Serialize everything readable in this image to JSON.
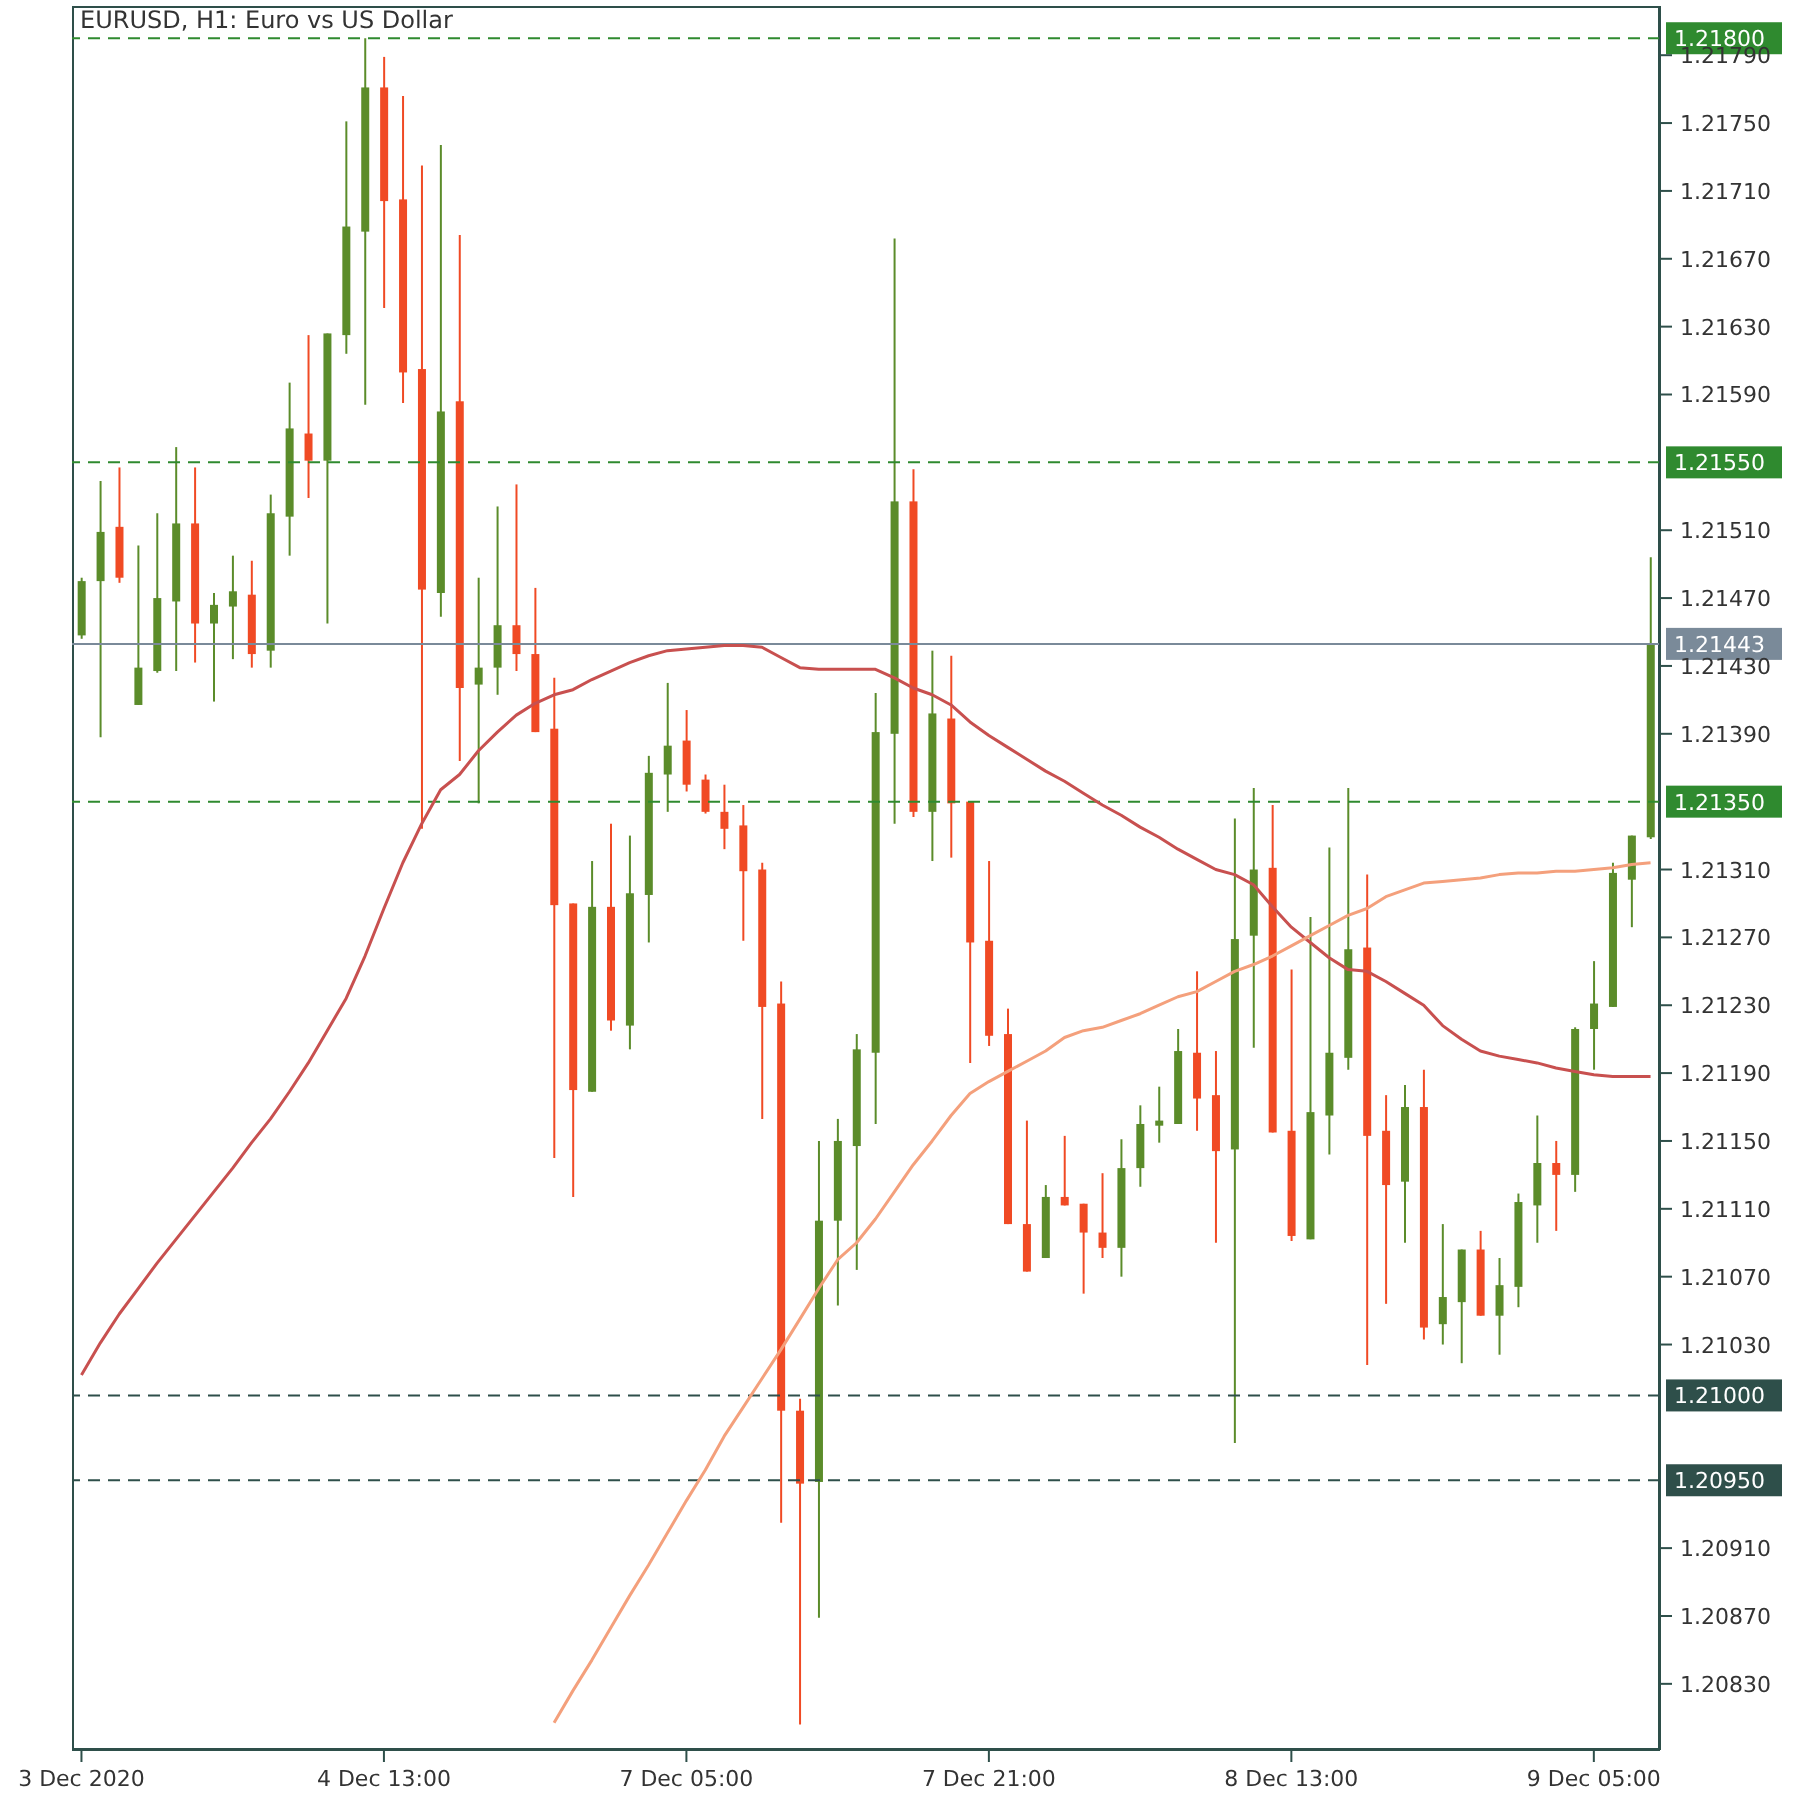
{
  "chart_data": {
    "type": "candlestick",
    "title": "EURUSD, H1:  Euro vs US Dollar",
    "categories": [
      "3 Dec 2020",
      null,
      null,
      null,
      null,
      null,
      null,
      null,
      null,
      null,
      null,
      null,
      null,
      null,
      null,
      null,
      "4 Dec 13:00",
      null,
      null,
      null,
      null,
      null,
      null,
      null,
      null,
      null,
      null,
      null,
      null,
      null,
      null,
      null,
      "7 Dec 05:00",
      null,
      null,
      null,
      null,
      null,
      null,
      null,
      null,
      null,
      null,
      null,
      null,
      null,
      null,
      null,
      "7 Dec 21:00",
      null,
      null,
      null,
      null,
      null,
      null,
      null,
      null,
      null,
      null,
      null,
      null,
      null,
      null,
      null,
      "8 Dec 13:00",
      null,
      null,
      null,
      null,
      null,
      null,
      null,
      null,
      null,
      null,
      null,
      null,
      null,
      null,
      null,
      "9 Dec 05:00",
      null,
      null,
      null
    ],
    "ohlc": [
      [
        1.21448,
        1.21482,
        1.21446,
        1.2148
      ],
      [
        1.2148,
        1.21539,
        1.21388,
        1.21509
      ],
      [
        1.21512,
        1.21547,
        1.21479,
        1.21482
      ],
      [
        1.21407,
        1.21501,
        1.21407,
        1.21429
      ],
      [
        1.21427,
        1.2152,
        1.21426,
        1.2147
      ],
      [
        1.21468,
        1.21559,
        1.21427,
        1.21514
      ],
      [
        1.21514,
        1.21547,
        1.21432,
        1.21455
      ],
      [
        1.21455,
        1.21473,
        1.21409,
        1.21466
      ],
      [
        1.21465,
        1.21495,
        1.21434,
        1.21474
      ],
      [
        1.21472,
        1.21492,
        1.21429,
        1.21437
      ],
      [
        1.21439,
        1.21531,
        1.21429,
        1.2152
      ],
      [
        1.21518,
        1.21597,
        1.21495,
        1.2157
      ],
      [
        1.21567,
        1.21625,
        1.21529,
        1.21551
      ],
      [
        1.21551,
        1.21626,
        1.21455,
        1.21626
      ],
      [
        1.21625,
        1.21751,
        1.21614,
        1.21689
      ],
      [
        1.21686,
        1.218,
        1.21584,
        1.21771
      ],
      [
        1.21771,
        1.21789,
        1.21641,
        1.21704
      ],
      [
        1.21705,
        1.21766,
        1.21585,
        1.21603
      ],
      [
        1.21605,
        1.21725,
        1.21334,
        1.21475
      ],
      [
        1.21473,
        1.21737,
        1.21459,
        1.2158
      ],
      [
        1.21586,
        1.21684,
        1.21374,
        1.21417
      ],
      [
        1.21419,
        1.21482,
        1.21349,
        1.21429
      ],
      [
        1.21429,
        1.21524,
        1.21413,
        1.21454
      ],
      [
        1.21454,
        1.21537,
        1.21427,
        1.21437
      ],
      [
        1.21437,
        1.21476,
        1.21391,
        1.21391
      ],
      [
        1.21393,
        1.21423,
        1.2114,
        1.21289
      ],
      [
        1.2129,
        1.2129,
        1.21117,
        1.2118
      ],
      [
        1.21179,
        1.21315,
        1.21179,
        1.21288
      ],
      [
        1.21288,
        1.21337,
        1.21215,
        1.21221
      ],
      [
        1.21218,
        1.2133,
        1.21204,
        1.21296
      ],
      [
        1.21295,
        1.21377,
        1.21267,
        1.21367
      ],
      [
        1.21366,
        1.2142,
        1.21344,
        1.21383
      ],
      [
        1.21386,
        1.21404,
        1.21356,
        1.2136
      ],
      [
        1.21363,
        1.21366,
        1.21343,
        1.21344
      ],
      [
        1.21344,
        1.2136,
        1.21322,
        1.21334
      ],
      [
        1.21336,
        1.21348,
        1.21268,
        1.21309
      ],
      [
        1.2131,
        1.21314,
        1.21163,
        1.21229
      ],
      [
        1.21231,
        1.21244,
        1.20925,
        1.20991
      ],
      [
        1.20991,
        1.20998,
        1.20806,
        1.20948
      ],
      [
        1.20949,
        1.2115,
        1.20869,
        1.21103
      ],
      [
        1.21103,
        1.21163,
        1.21053,
        1.2115
      ],
      [
        1.21147,
        1.21213,
        1.21074,
        1.21204
      ],
      [
        1.21202,
        1.21414,
        1.2116,
        1.21391
      ],
      [
        1.2139,
        1.21682,
        1.21337,
        1.21527
      ],
      [
        1.21527,
        1.21546,
        1.21341,
        1.21344
      ],
      [
        1.21344,
        1.21439,
        1.21315,
        1.21402
      ],
      [
        1.21399,
        1.21436,
        1.21317,
        1.21349
      ],
      [
        1.2135,
        1.2135,
        1.21196,
        1.21267
      ],
      [
        1.21268,
        1.21315,
        1.21206,
        1.21212
      ],
      [
        1.21213,
        1.21228,
        1.21101,
        1.21101
      ],
      [
        1.21101,
        1.21162,
        1.21073,
        1.21073
      ],
      [
        1.21081,
        1.21124,
        1.21081,
        1.21117
      ],
      [
        1.21117,
        1.21153,
        1.21112,
        1.21112
      ],
      [
        1.21113,
        1.21113,
        1.2106,
        1.21096
      ],
      [
        1.21096,
        1.21131,
        1.21081,
        1.21087
      ],
      [
        1.21087,
        1.21151,
        1.2107,
        1.21134
      ],
      [
        1.21134,
        1.21171,
        1.21123,
        1.2116
      ],
      [
        1.21159,
        1.21182,
        1.21149,
        1.21162
      ],
      [
        1.2116,
        1.21216,
        1.2116,
        1.21203
      ],
      [
        1.21202,
        1.2125,
        1.21156,
        1.21175
      ],
      [
        1.21177,
        1.21203,
        1.2109,
        1.21144
      ],
      [
        1.21145,
        1.2134,
        1.20972,
        1.21269
      ],
      [
        1.21271,
        1.21358,
        1.21205,
        1.2131
      ],
      [
        1.21311,
        1.21348,
        1.21155,
        1.21155
      ],
      [
        1.21156,
        1.21251,
        1.21091,
        1.21094
      ],
      [
        1.21092,
        1.21282,
        1.21092,
        1.21167
      ],
      [
        1.21165,
        1.21323,
        1.21142,
        1.21202
      ],
      [
        1.21199,
        1.21358,
        1.21192,
        1.21263
      ],
      [
        1.21264,
        1.21307,
        1.21018,
        1.21153
      ],
      [
        1.21156,
        1.21177,
        1.21054,
        1.21124
      ],
      [
        1.21126,
        1.21183,
        1.2109,
        1.2117
      ],
      [
        1.2117,
        1.21192,
        1.21033,
        1.2104
      ],
      [
        1.21042,
        1.21101,
        1.2103,
        1.21058
      ],
      [
        1.21055,
        1.21086,
        1.21019,
        1.21086
      ],
      [
        1.21086,
        1.21097,
        1.21047,
        1.21047
      ],
      [
        1.21047,
        1.21081,
        1.21024,
        1.21065
      ],
      [
        1.21064,
        1.21119,
        1.21052,
        1.21114
      ],
      [
        1.21112,
        1.21165,
        1.2109,
        1.21137
      ],
      [
        1.21137,
        1.2115,
        1.21097,
        1.2113
      ],
      [
        1.2113,
        1.21217,
        1.2112,
        1.21216
      ],
      [
        1.21216,
        1.21256,
        1.21192,
        1.21231
      ],
      [
        1.21229,
        1.21314,
        1.21229,
        1.21308
      ],
      [
        1.21304,
        1.2133,
        1.21276,
        1.2133
      ],
      [
        1.21329,
        1.21494,
        1.21328,
        1.21443
      ]
    ],
    "colors": [
      "#5b8c2a",
      "#5b8c2a",
      "#f04a24",
      "#5b8c2a",
      "#5b8c2a",
      "#5b8c2a",
      "#f04a24",
      "#5b8c2a",
      "#5b8c2a",
      "#f04a24",
      "#5b8c2a",
      "#5b8c2a",
      "#f04a24",
      "#5b8c2a",
      "#5b8c2a",
      "#5b8c2a",
      "#f04a24",
      "#f04a24",
      "#f04a24",
      "#5b8c2a",
      "#f04a24",
      "#5b8c2a",
      "#5b8c2a",
      "#f04a24",
      "#f04a24",
      "#f04a24",
      "#f04a24",
      "#5b8c2a",
      "#f04a24",
      "#5b8c2a",
      "#5b8c2a",
      "#5b8c2a",
      "#f04a24",
      "#f04a24",
      "#f04a24",
      "#f04a24",
      "#f04a24",
      "#f04a24",
      "#f04a24",
      "#5b8c2a",
      "#5b8c2a",
      "#5b8c2a",
      "#5b8c2a",
      "#5b8c2a",
      "#f04a24",
      "#5b8c2a",
      "#f04a24",
      "#f04a24",
      "#f04a24",
      "#f04a24",
      "#f04a24",
      "#5b8c2a",
      "#f04a24",
      "#f04a24",
      "#f04a24",
      "#5b8c2a",
      "#5b8c2a",
      "#5b8c2a",
      "#5b8c2a",
      "#f04a24",
      "#f04a24",
      "#5b8c2a",
      "#5b8c2a",
      "#f04a24",
      "#f04a24",
      "#5b8c2a",
      "#5b8c2a",
      "#5b8c2a",
      "#f04a24",
      "#f04a24",
      "#5b8c2a",
      "#f04a24",
      "#5b8c2a",
      "#5b8c2a",
      "#f04a24",
      "#5b8c2a",
      "#5b8c2a",
      "#5b8c2a",
      "#f04a24",
      "#5b8c2a",
      "#5b8c2a",
      "#5b8c2a",
      "#5b8c2a",
      "#5b8c2a"
    ],
    "series": [
      {
        "type": "line",
        "color": "#c8504f",
        "values": [
          1.21012,
          1.21031,
          1.21048,
          1.21063,
          1.21078,
          1.21092,
          1.21106,
          1.2112,
          1.21134,
          1.21149,
          1.21163,
          1.21179,
          1.21196,
          1.21215,
          1.21234,
          1.21259,
          1.21287,
          1.21314,
          1.21337,
          1.21357,
          1.21366,
          1.2138,
          1.21391,
          1.21401,
          1.21408,
          1.21413,
          1.21416,
          1.21422,
          1.21427,
          1.21432,
          1.21436,
          1.21439,
          1.2144,
          1.21441,
          1.21442,
          1.21442,
          1.21441,
          1.21435,
          1.21429,
          1.21428,
          1.21428,
          1.21428,
          1.21428,
          1.21423,
          1.21417,
          1.21413,
          1.21407,
          1.21397,
          1.21389,
          1.21382,
          1.21375,
          1.21368,
          1.21362,
          1.21355,
          1.21348,
          1.21342,
          1.21335,
          1.21329,
          1.21322,
          1.21316,
          1.2131,
          1.21307,
          1.21301,
          1.21288,
          1.21276,
          1.21267,
          1.21258,
          1.21251,
          1.2125,
          1.21244,
          1.21237,
          1.2123,
          1.21218,
          1.2121,
          1.21203,
          1.212,
          1.21198,
          1.21196,
          1.21193,
          1.21191,
          1.21189,
          1.21188,
          1.21188,
          1.21188
        ]
      },
      {
        "type": "line",
        "color": "#f4a07c",
        "values": [
          null,
          null,
          null,
          null,
          null,
          null,
          null,
          null,
          null,
          null,
          null,
          null,
          null,
          null,
          null,
          null,
          null,
          null,
          null,
          null,
          null,
          null,
          null,
          null,
          null,
          1.20807,
          1.20826,
          1.20844,
          1.20863,
          1.20882,
          1.209,
          1.20919,
          1.20938,
          1.20956,
          1.20976,
          1.20993,
          1.2101,
          1.21027,
          1.21045,
          1.21063,
          1.2108,
          1.2109,
          1.21104,
          1.2112,
          1.21136,
          1.2115,
          1.21165,
          1.21178,
          1.21185,
          1.21191,
          1.21197,
          1.21203,
          1.21211,
          1.21215,
          1.21217,
          1.21221,
          1.21225,
          1.2123,
          1.21235,
          1.21238,
          1.21244,
          1.2125,
          1.21254,
          1.21259,
          1.21265,
          1.21271,
          1.21277,
          1.21283,
          1.21287,
          1.21294,
          1.21298,
          1.21302,
          1.21303,
          1.21304,
          1.21305,
          1.21307,
          1.21308,
          1.21308,
          1.21309,
          1.21309,
          1.2131,
          1.21311,
          1.21313,
          1.21314
        ]
      }
    ],
    "ylim": [
      1.20791,
      1.21819
    ],
    "yticks": [
      {
        "value": 1.2179,
        "label": "1.21790"
      },
      {
        "value": 1.2175,
        "label": "1.21750"
      },
      {
        "value": 1.2171,
        "label": "1.21710"
      },
      {
        "value": 1.2167,
        "label": "1.21670"
      },
      {
        "value": 1.2163,
        "label": "1.21630"
      },
      {
        "value": 1.2159,
        "label": "1.21590"
      },
      {
        "value": 1.2151,
        "label": "1.21510"
      },
      {
        "value": 1.2147,
        "label": "1.21470"
      },
      {
        "value": 1.2143,
        "label": "1.21430"
      },
      {
        "value": 1.2139,
        "label": "1.21390"
      },
      {
        "value": 1.2131,
        "label": "1.21310"
      },
      {
        "value": 1.2127,
        "label": "1.21270"
      },
      {
        "value": 1.2123,
        "label": "1.21230"
      },
      {
        "value": 1.2119,
        "label": "1.21190"
      },
      {
        "value": 1.2115,
        "label": "1.21150"
      },
      {
        "value": 1.2111,
        "label": "1.21110"
      },
      {
        "value": 1.2107,
        "label": "1.21070"
      },
      {
        "value": 1.2103,
        "label": "1.21030"
      },
      {
        "value": 1.2091,
        "label": "1.20910"
      },
      {
        "value": 1.2087,
        "label": "1.20870"
      },
      {
        "value": 1.2083,
        "label": "1.20830"
      }
    ],
    "ref_lines": [
      {
        "axis": "y",
        "value": 1.218,
        "label": "1.21800",
        "color": "#2f8a2f",
        "line_style": "dashed"
      },
      {
        "axis": "y",
        "value": 1.2155,
        "label": "1.21550",
        "color": "#2f8a2f",
        "line_style": "dashed"
      },
      {
        "axis": "y",
        "value": 1.21443,
        "label": "1.21443",
        "color": "#7a8a99",
        "line_style": "solid"
      },
      {
        "axis": "y",
        "value": 1.2135,
        "label": "1.21350",
        "color": "#2f8a2f",
        "line_style": "dashed"
      },
      {
        "axis": "y",
        "value": 1.21,
        "label": "1.21000",
        "color": "#2e4f4a",
        "line_style": "dashed"
      },
      {
        "axis": "y",
        "value": 1.2095,
        "label": "1.20950",
        "color": "#2e4f4a",
        "line_style": "dashed"
      }
    ]
  }
}
